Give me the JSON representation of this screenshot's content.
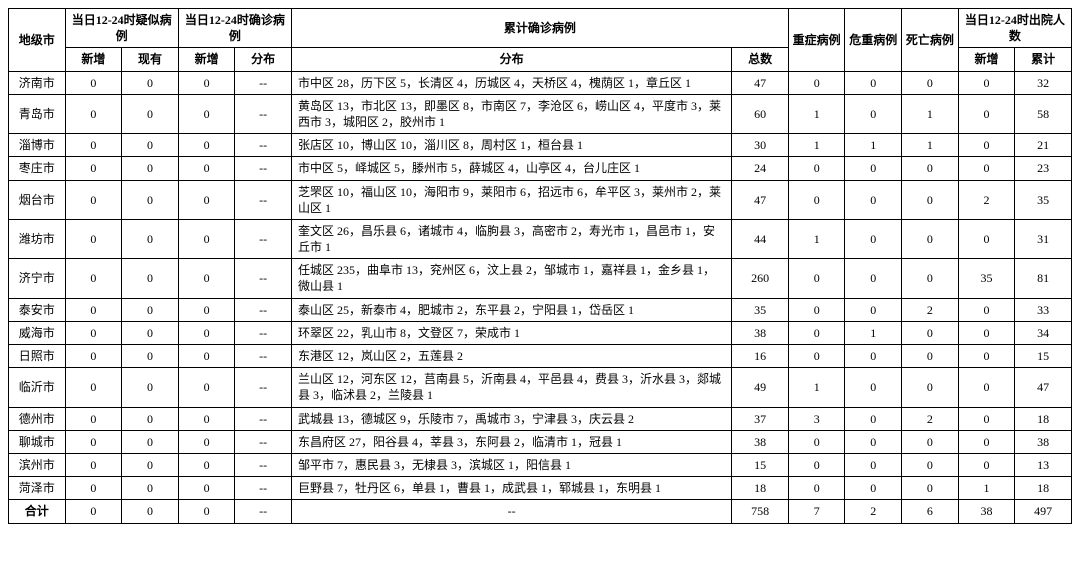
{
  "header": {
    "city": "地级市",
    "suspected": "当日12-24时疑似病例",
    "suspected_new": "新增",
    "suspected_exist": "现有",
    "confirmed_day": "当日12-24时确诊病例",
    "confirmed_day_new": "新增",
    "confirmed_day_dist": "分布",
    "cumulative": "累计确诊病例",
    "cumulative_dist": "分布",
    "cumulative_total": "总数",
    "severe": "重症病例",
    "critical": "危重病例",
    "death": "死亡病例",
    "discharged": "当日12-24时出院人数",
    "discharged_new": "新增",
    "discharged_total": "累计"
  },
  "rows": [
    {
      "city": "济南市",
      "sn": "0",
      "se": "0",
      "cn": "0",
      "cd": "--",
      "dist": "市中区 28，历下区 5，长清区 4，历城区 4，天桥区 4，槐荫区 1，章丘区 1",
      "total": "47",
      "sev": "0",
      "crit": "0",
      "death": "0",
      "dn": "0",
      "dt": "32"
    },
    {
      "city": "青岛市",
      "sn": "0",
      "se": "0",
      "cn": "0",
      "cd": "--",
      "dist": "黄岛区 13，市北区 13，即墨区 8，市南区 7，李沧区 6，崂山区 4，平度市 3，莱西市 3，城阳区 2，胶州市 1",
      "total": "60",
      "sev": "1",
      "crit": "0",
      "death": "1",
      "dn": "0",
      "dt": "58"
    },
    {
      "city": "淄博市",
      "sn": "0",
      "se": "0",
      "cn": "0",
      "cd": "--",
      "dist": "张店区 10，博山区 10，淄川区 8，周村区 1，桓台县 1",
      "total": "30",
      "sev": "1",
      "crit": "1",
      "death": "1",
      "dn": "0",
      "dt": "21"
    },
    {
      "city": "枣庄市",
      "sn": "0",
      "se": "0",
      "cn": "0",
      "cd": "--",
      "dist": "市中区 5，峄城区 5，滕州市 5，薛城区 4，山亭区 4，台儿庄区 1",
      "total": "24",
      "sev": "0",
      "crit": "0",
      "death": "0",
      "dn": "0",
      "dt": "23"
    },
    {
      "city": "烟台市",
      "sn": "0",
      "se": "0",
      "cn": "0",
      "cd": "--",
      "dist": "芝罘区 10，福山区 10，海阳市 9，莱阳市 6，招远市 6，牟平区 3，莱州市 2，莱山区 1",
      "total": "47",
      "sev": "0",
      "crit": "0",
      "death": "0",
      "dn": "2",
      "dt": "35"
    },
    {
      "city": "潍坊市",
      "sn": "0",
      "se": "0",
      "cn": "0",
      "cd": "--",
      "dist": "奎文区 26，昌乐县 6，诸城市 4，临朐县 3，高密市 2，寿光市 1，昌邑市 1，安丘市 1",
      "total": "44",
      "sev": "1",
      "crit": "0",
      "death": "0",
      "dn": "0",
      "dt": "31"
    },
    {
      "city": "济宁市",
      "sn": "0",
      "se": "0",
      "cn": "0",
      "cd": "--",
      "dist": "任城区 235，曲阜市 13，兖州区 6，汶上县 2，邹城市 1，嘉祥县 1，金乡县 1，微山县 1",
      "total": "260",
      "sev": "0",
      "crit": "0",
      "death": "0",
      "dn": "35",
      "dt": "81"
    },
    {
      "city": "泰安市",
      "sn": "0",
      "se": "0",
      "cn": "0",
      "cd": "--",
      "dist": "泰山区 25，新泰市 4，肥城市 2，东平县 2，宁阳县 1，岱岳区 1",
      "total": "35",
      "sev": "0",
      "crit": "0",
      "death": "2",
      "dn": "0",
      "dt": "33"
    },
    {
      "city": "威海市",
      "sn": "0",
      "se": "0",
      "cn": "0",
      "cd": "--",
      "dist": "环翠区 22，乳山市 8，文登区 7，荣成市 1",
      "total": "38",
      "sev": "0",
      "crit": "1",
      "death": "0",
      "dn": "0",
      "dt": "34"
    },
    {
      "city": "日照市",
      "sn": "0",
      "se": "0",
      "cn": "0",
      "cd": "--",
      "dist": "东港区 12，岚山区 2，五莲县 2",
      "total": "16",
      "sev": "0",
      "crit": "0",
      "death": "0",
      "dn": "0",
      "dt": "15"
    },
    {
      "city": "临沂市",
      "sn": "0",
      "se": "0",
      "cn": "0",
      "cd": "--",
      "dist": "兰山区 12，河东区 12，莒南县 5，沂南县 4，平邑县 4，费县 3，沂水县 3，郯城县 3，临沭县 2，兰陵县 1",
      "total": "49",
      "sev": "1",
      "crit": "0",
      "death": "0",
      "dn": "0",
      "dt": "47"
    },
    {
      "city": "德州市",
      "sn": "0",
      "se": "0",
      "cn": "0",
      "cd": "--",
      "dist": "武城县 13，德城区 9，乐陵市 7，禹城市 3，宁津县 3，庆云县 2",
      "total": "37",
      "sev": "3",
      "crit": "0",
      "death": "2",
      "dn": "0",
      "dt": "18"
    },
    {
      "city": "聊城市",
      "sn": "0",
      "se": "0",
      "cn": "0",
      "cd": "--",
      "dist": "东昌府区 27，阳谷县 4，莘县 3，东阿县 2，临清市 1，冠县 1",
      "total": "38",
      "sev": "0",
      "crit": "0",
      "death": "0",
      "dn": "0",
      "dt": "38"
    },
    {
      "city": "滨州市",
      "sn": "0",
      "se": "0",
      "cn": "0",
      "cd": "--",
      "dist": "邹平市 7，惠民县 3，无棣县 3，滨城区 1，阳信县 1",
      "total": "15",
      "sev": "0",
      "crit": "0",
      "death": "0",
      "dn": "0",
      "dt": "13"
    },
    {
      "city": "菏泽市",
      "sn": "0",
      "se": "0",
      "cn": "0",
      "cd": "--",
      "dist": "巨野县 7，牡丹区 6，单县 1，曹县 1，成武县 1，郓城县 1，东明县 1",
      "total": "18",
      "sev": "0",
      "crit": "0",
      "death": "0",
      "dn": "1",
      "dt": "18"
    }
  ],
  "totals": {
    "city": "合计",
    "sn": "0",
    "se": "0",
    "cn": "0",
    "cd": "--",
    "dist": "--",
    "total": "758",
    "sev": "7",
    "crit": "2",
    "death": "6",
    "dn": "38",
    "dt": "497"
  }
}
